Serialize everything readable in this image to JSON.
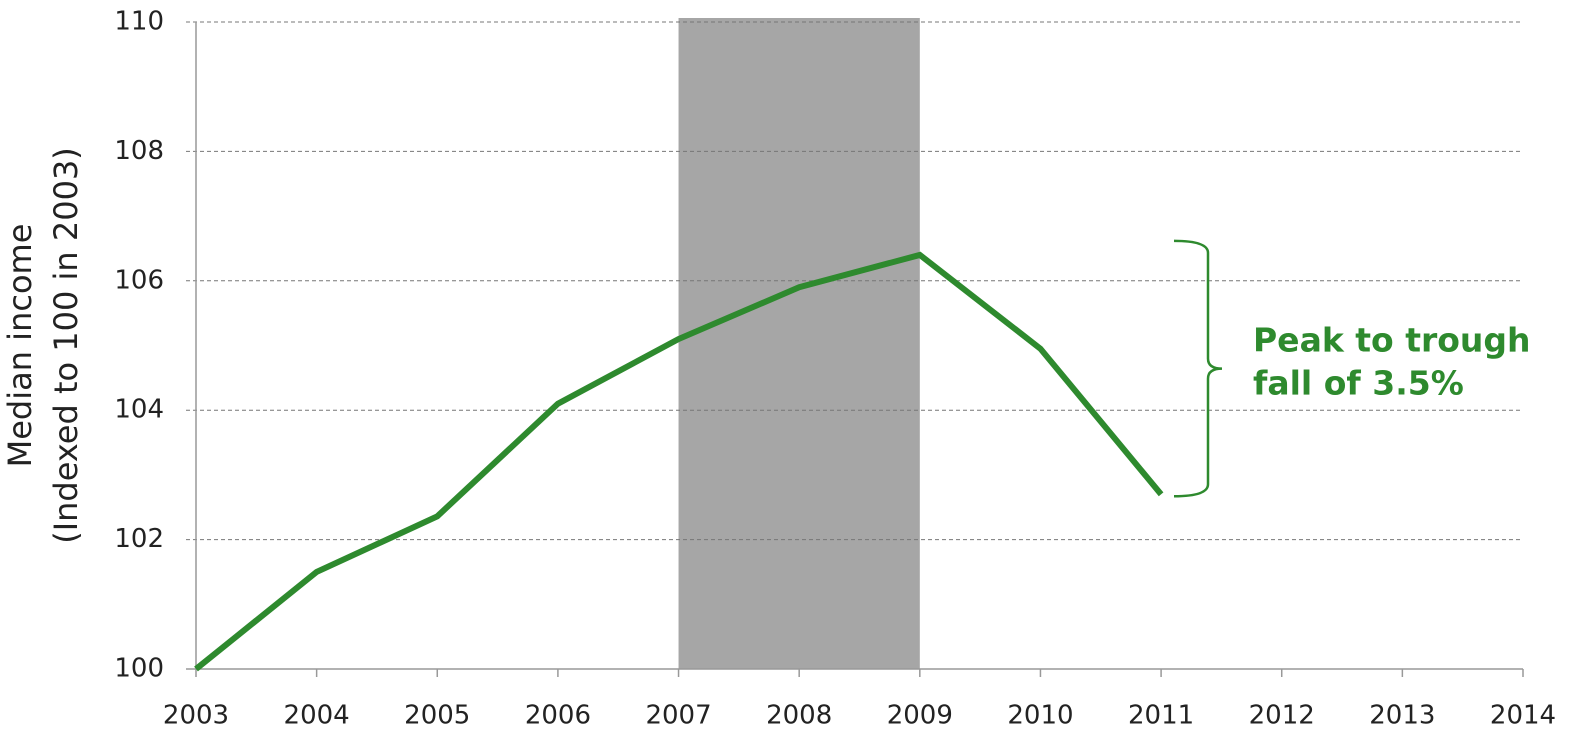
{
  "chart_data": {
    "type": "line",
    "y_label_lines": [
      "Median income",
      "(Indexed to 100 in 2003)"
    ],
    "x": [
      2003,
      2004,
      2005,
      2006,
      2007,
      2008,
      2009,
      2010,
      2011
    ],
    "series": [
      {
        "name": "Median income",
        "color": "#2e8a2e",
        "values": [
          100,
          101.5,
          102.36,
          104.1,
          105.1,
          105.9,
          106.4,
          104.95,
          102.7
        ]
      }
    ],
    "xlim": [
      2003,
      2014
    ],
    "xticks": [
      2003,
      2004,
      2005,
      2006,
      2007,
      2008,
      2009,
      2010,
      2011,
      2012,
      2013,
      2014
    ],
    "ylim": [
      100,
      110
    ],
    "yticks": [
      100,
      102,
      104,
      106,
      108,
      110
    ],
    "grid": true,
    "shaded_range": [
      2007,
      2009
    ],
    "shade_color": "#a6a6a6",
    "annotation": {
      "lines": [
        "Peak to trough",
        "fall of 3.5%"
      ],
      "color": "#2e8a2e",
      "from": 106.4,
      "to": 102.7
    }
  }
}
